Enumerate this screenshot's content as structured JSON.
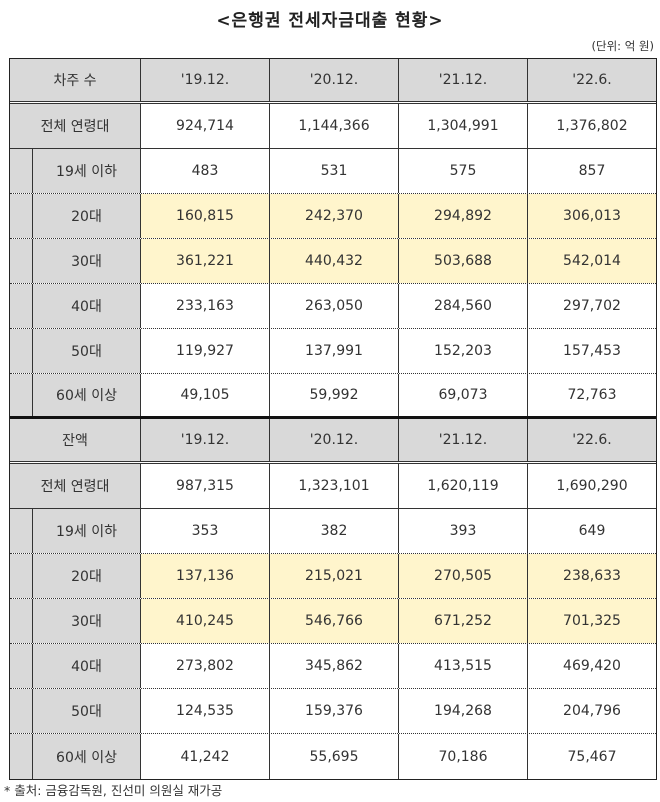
{
  "title": "<은행권 전세자금대출 현황>",
  "unit": "(단위: 억 원)",
  "periods": [
    "'19.12.",
    "'20.12.",
    "'21.12.",
    "'22.6."
  ],
  "borrowers": {
    "header": "차주 수",
    "rows": [
      {
        "label": "전체 연령대",
        "values": [
          "924,714",
          "1,144,366",
          "1,304,991",
          "1,376,802"
        ]
      },
      {
        "label": "19세 이하",
        "values": [
          "483",
          "531",
          "575",
          "857"
        ]
      },
      {
        "label": "20대",
        "values": [
          "160,815",
          "242,370",
          "294,892",
          "306,013"
        ]
      },
      {
        "label": "30대",
        "values": [
          "361,221",
          "440,432",
          "503,688",
          "542,014"
        ]
      },
      {
        "label": "40대",
        "values": [
          "233,163",
          "263,050",
          "284,560",
          "297,702"
        ]
      },
      {
        "label": "50대",
        "values": [
          "119,927",
          "137,991",
          "152,203",
          "157,453"
        ]
      },
      {
        "label": "60세 이상",
        "values": [
          "49,105",
          "59,992",
          "69,073",
          "72,763"
        ]
      }
    ]
  },
  "balance": {
    "header": "잔액",
    "rows": [
      {
        "label": "전체 연령대",
        "values": [
          "987,315",
          "1,323,101",
          "1,620,119",
          "1,690,290"
        ]
      },
      {
        "label": "19세 이하",
        "values": [
          "353",
          "382",
          "393",
          "649"
        ]
      },
      {
        "label": "20대",
        "values": [
          "137,136",
          "215,021",
          "270,505",
          "238,633"
        ]
      },
      {
        "label": "30대",
        "values": [
          "410,245",
          "546,766",
          "671,252",
          "701,325"
        ]
      },
      {
        "label": "40대",
        "values": [
          "273,802",
          "345,862",
          "413,515",
          "469,420"
        ]
      },
      {
        "label": "50대",
        "values": [
          "124,535",
          "159,376",
          "194,268",
          "204,796"
        ]
      },
      {
        "label": "60세 이상",
        "values": [
          "41,242",
          "55,695",
          "70,186",
          "75,467"
        ]
      }
    ]
  },
  "colors": {
    "header_bg": "#d9d9d9",
    "highlight_bg": "#fff5cc"
  },
  "source": "* 출처: 금융감독원, 진선미 의원실 재가공"
}
